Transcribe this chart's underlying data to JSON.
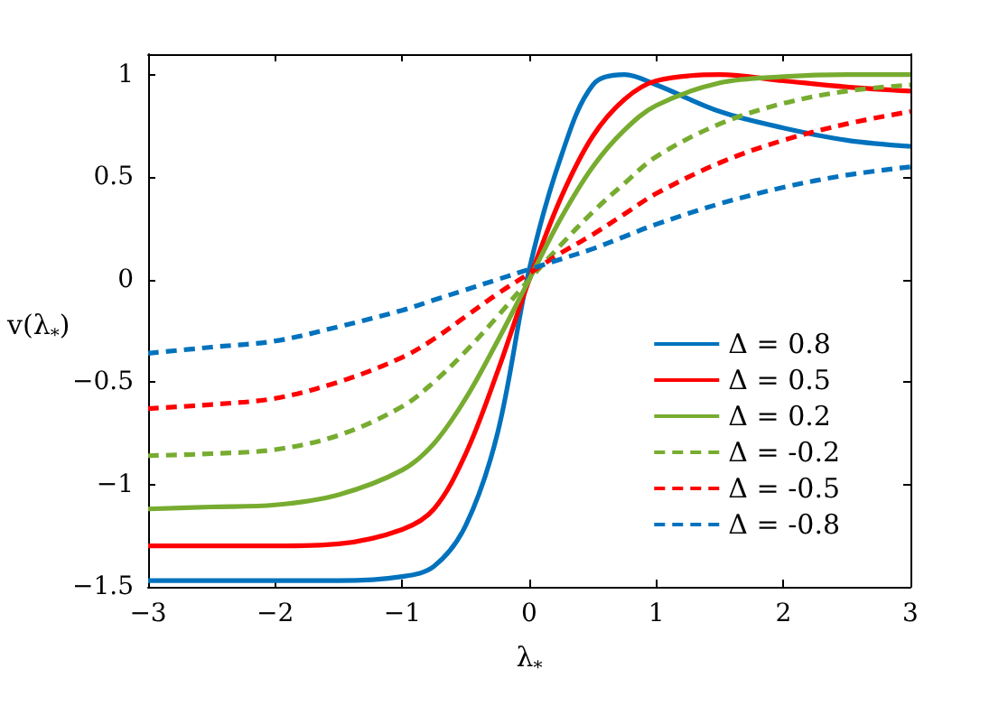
{
  "chart_data": {
    "type": "line",
    "xlabel": "λ$_{*}$",
    "ylabel": "v(λ$_{*}$)",
    "xlim": [
      -3,
      3
    ],
    "xticks": [
      {
        "value": -3,
        "label": "−3"
      },
      {
        "value": -2,
        "label": "−2"
      },
      {
        "value": -1,
        "label": "−1"
      },
      0,
      1,
      2,
      3
    ],
    "ylim": [
      -1.5,
      1.1
    ],
    "yticks": [
      {
        "value": -1.5,
        "label": "−1.5"
      },
      {
        "value": -1,
        "label": "−1"
      },
      {
        "value": -0.5,
        "label": "−0.5"
      },
      0,
      0.5,
      1
    ],
    "grid": false,
    "legend": "bottom right",
    "marker": "none",
    "x": [
      -3,
      -2.5,
      -2,
      -1.5,
      -1,
      -0.75,
      -0.5,
      -0.25,
      0,
      0.25,
      0.5,
      0.75,
      1,
      1.5,
      2,
      2.5,
      3
    ],
    "series": [
      {
        "name": "Δ = 0.8",
        "color": "#0072bd",
        "line_style": "solid",
        "values": [
          -1.47,
          -1.47,
          -1.47,
          -1.47,
          -1.45,
          -1.4,
          -1.2,
          -0.75,
          0.05,
          0.6,
          0.95,
          1.0,
          0.95,
          0.82,
          0.74,
          0.68,
          0.65
        ]
      },
      {
        "name": "Δ = 0.5",
        "color": "#ff0000",
        "line_style": "solid",
        "values": [
          -1.3,
          -1.3,
          -1.3,
          -1.29,
          -1.22,
          -1.12,
          -0.85,
          -0.45,
          0.0,
          0.4,
          0.7,
          0.88,
          0.97,
          1.0,
          0.97,
          0.94,
          0.92
        ]
      },
      {
        "name": "Δ = 0.2",
        "color": "#77ac30",
        "line_style": "solid",
        "values": [
          -1.12,
          -1.11,
          -1.1,
          -1.05,
          -0.93,
          -0.8,
          -0.58,
          -0.3,
          0.0,
          0.3,
          0.55,
          0.73,
          0.85,
          0.96,
          0.99,
          1.0,
          1.0
        ]
      },
      {
        "name": "Δ = -0.2",
        "color": "#77ac30",
        "line_style": "dashed",
        "values": [
          -0.86,
          -0.85,
          -0.83,
          -0.76,
          -0.62,
          -0.5,
          -0.35,
          -0.18,
          0.0,
          0.17,
          0.33,
          0.47,
          0.6,
          0.76,
          0.86,
          0.92,
          0.95
        ]
      },
      {
        "name": "Δ = -0.5",
        "color": "#ff0000",
        "line_style": "dashed",
        "values": [
          -0.63,
          -0.61,
          -0.58,
          -0.5,
          -0.38,
          -0.29,
          -0.18,
          -0.07,
          0.03,
          0.13,
          0.22,
          0.32,
          0.42,
          0.57,
          0.68,
          0.76,
          0.82
        ]
      },
      {
        "name": "Δ = -0.8",
        "color": "#0072bd",
        "line_style": "dashed",
        "values": [
          -0.36,
          -0.33,
          -0.3,
          -0.23,
          -0.15,
          -0.1,
          -0.05,
          0.0,
          0.05,
          0.1,
          0.15,
          0.21,
          0.27,
          0.37,
          0.45,
          0.51,
          0.55
        ]
      }
    ]
  }
}
